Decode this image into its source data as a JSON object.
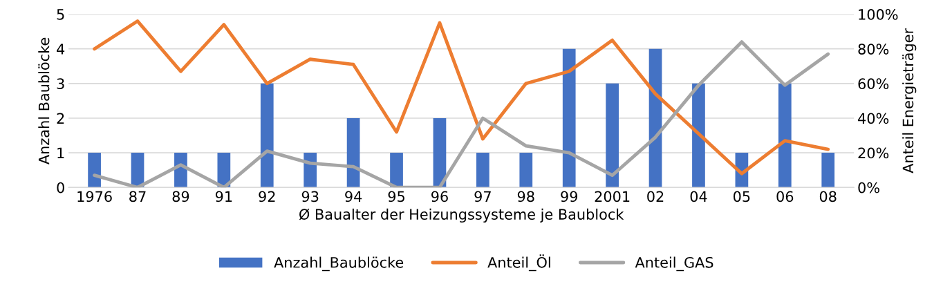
{
  "chart_data": {
    "type": "bar",
    "xlabel": "Ø Baualter der Heizungssysteme je Baublock",
    "ylabel": "Anzahl Baublöcke",
    "y2label": "Anteil Energieträger",
    "categories": [
      "1976",
      "87",
      "89",
      "91",
      "92",
      "93",
      "94",
      "95",
      "96",
      "97",
      "98",
      "99",
      "2001",
      "02",
      "04",
      "05",
      "06",
      "08"
    ],
    "series": [
      {
        "name": "Anzahl_Baublöcke",
        "color": "#4472c4",
        "values": [
          1,
          1,
          1,
          1,
          3,
          1,
          2,
          1,
          2,
          1,
          1,
          4,
          3,
          4,
          3,
          1,
          3,
          1
        ]
      },
      {
        "name": "Anteil_Öl",
        "type": "line",
        "axis": "y2",
        "color": "#ed7d31",
        "values": [
          80,
          96,
          67,
          94,
          60,
          74,
          71,
          32,
          95,
          28,
          60,
          67,
          85,
          54,
          31,
          8,
          27,
          22
        ]
      },
      {
        "name": "Anteil_GAS",
        "type": "line",
        "axis": "y2",
        "color": "#a5a5a5",
        "values": [
          7,
          0,
          13,
          0,
          21,
          14,
          12,
          0,
          0,
          40,
          24,
          20,
          7,
          29,
          59,
          84,
          59,
          77
        ]
      }
    ],
    "ylim": [
      0,
      5
    ],
    "yticks": [
      0,
      1,
      2,
      3,
      4,
      5
    ],
    "y2lim": [
      0,
      100
    ],
    "y2ticks": [
      {
        "value": 0,
        "label": "0%"
      },
      {
        "value": 20,
        "label": "20%"
      },
      {
        "value": 40,
        "label": "40%"
      },
      {
        "value": 60,
        "label": "60%"
      },
      {
        "value": 80,
        "label": "80%"
      },
      {
        "value": 100,
        "label": "100%"
      }
    ],
    "grid": "y",
    "legend": "bottom",
    "marker": "none",
    "line_style": "solid"
  }
}
